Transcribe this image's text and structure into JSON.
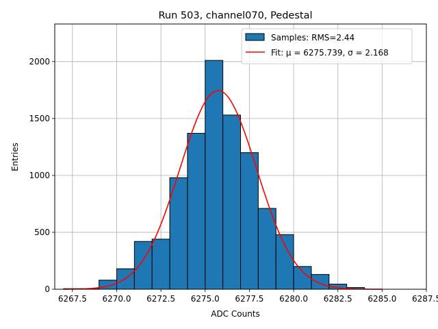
{
  "chart_data": {
    "type": "bar",
    "title": "Run 503, channel070, Pedestal",
    "xlabel": "ADC Counts",
    "ylabel": "Entries",
    "xlim": [
      6266.5,
      6287.5
    ],
    "ylim": [
      0,
      2330
    ],
    "xticks": [
      6267.5,
      6270.0,
      6272.5,
      6275.0,
      6277.5,
      6280.0,
      6282.5,
      6285.0,
      6287.5
    ],
    "xtick_labels": [
      "6267.5",
      "6270.0",
      "6272.5",
      "6275.0",
      "6277.5",
      "6280.0",
      "6282.5",
      "6285.0",
      "6287.5"
    ],
    "yticks": [
      0,
      500,
      1000,
      1500,
      2000
    ],
    "ytick_labels": [
      "0",
      "500",
      "1000",
      "1500",
      "2000"
    ],
    "grid": true,
    "legend_position": "top-right",
    "series": [
      {
        "name": "Samples: RMS=2.44",
        "kind": "histogram",
        "color": "#1f77b4",
        "edgecolor": "#000000",
        "bin_edges": [
          6267,
          6268,
          6269,
          6270,
          6271,
          6272,
          6273,
          6274,
          6275,
          6276,
          6277,
          6278,
          6279,
          6280,
          6281,
          6282,
          6283,
          6284,
          6285
        ],
        "values": [
          5,
          5,
          80,
          180,
          420,
          440,
          980,
          1370,
          2010,
          1530,
          1200,
          710,
          480,
          200,
          130,
          45,
          15,
          0
        ]
      },
      {
        "name": "Fit: μ = 6275.739, σ = 2.168",
        "kind": "gaussian",
        "color": "#ff0000",
        "mu": 6275.739,
        "sigma": 2.168,
        "amplitude": 1745,
        "x_range": [
          6267,
          6285
        ]
      }
    ]
  }
}
